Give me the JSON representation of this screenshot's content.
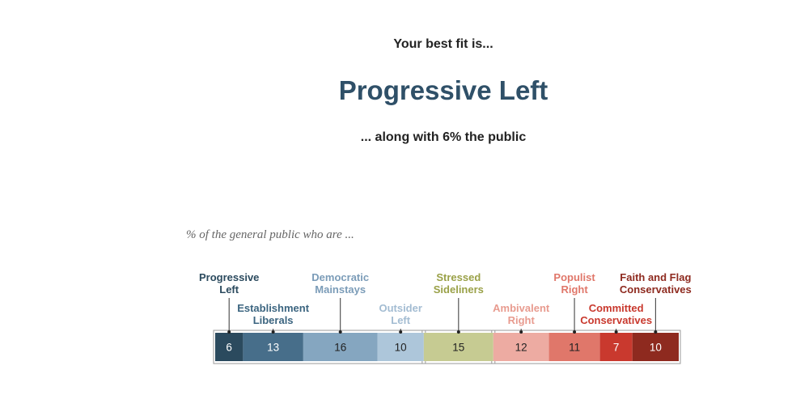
{
  "header": {
    "intro": "Your best fit is...",
    "result": "Progressive Left",
    "subtitle": "... along with 6% the public"
  },
  "chart_data": {
    "type": "bar",
    "orientation": "horizontal-stacked",
    "title": "% of the general public who are ...",
    "unit": "%",
    "groups": [
      {
        "members": [
          "Progressive Left",
          "Establishment Liberals",
          "Democratic Mainstays",
          "Outsider Left"
        ]
      },
      {
        "members": [
          "Stressed Sideliners"
        ]
      },
      {
        "members": [
          "Ambivalent Right",
          "Populist Right",
          "Committed Conservatives",
          "Faith and Flag Conservatives"
        ]
      }
    ],
    "segments": [
      {
        "label": "Progressive Left",
        "label_lines": [
          "Progressive",
          "Left"
        ],
        "value": 6,
        "color": "#2b4a5e",
        "label_color": "#2b4a5e",
        "text_color": "#ffffff"
      },
      {
        "label": "Establishment Liberals",
        "label_lines": [
          "Establishment",
          "Liberals"
        ],
        "value": 13,
        "color": "#476e8a",
        "label_color": "#3c6580",
        "text_color": "#ffffff"
      },
      {
        "label": "Democratic Mainstays",
        "label_lines": [
          "Democratic",
          "Mainstays"
        ],
        "value": 16,
        "color": "#85a6c0",
        "label_color": "#7b9cb8",
        "text_color": "#222222"
      },
      {
        "label": "Outsider Left",
        "label_lines": [
          "Outsider",
          "Left"
        ],
        "value": 10,
        "color": "#adc6da",
        "label_color": "#a3bcd2",
        "text_color": "#222222"
      },
      {
        "label": "Stressed Sideliners",
        "label_lines": [
          "Stressed",
          "Sideliners"
        ],
        "value": 15,
        "color": "#c6cb92",
        "label_color": "#9aa148",
        "text_color": "#222222"
      },
      {
        "label": "Ambivalent Right",
        "label_lines": [
          "Ambivalent",
          "Right"
        ],
        "value": 12,
        "color": "#edaba2",
        "label_color": "#e89b8f",
        "text_color": "#222222"
      },
      {
        "label": "Populist Right",
        "label_lines": [
          "Populist",
          "Right"
        ],
        "value": 11,
        "color": "#e0776a",
        "label_color": "#e0776a",
        "text_color": "#222222"
      },
      {
        "label": "Committed Conservatives",
        "label_lines": [
          "Committed",
          "Conservatives"
        ],
        "value": 7,
        "color": "#c9392e",
        "label_color": "#c9392e",
        "text_color": "#ffffff"
      },
      {
        "label": "Faith and Flag Conservatives",
        "label_lines": [
          "Faith and Flag",
          "Conservatives"
        ],
        "value": 10,
        "color": "#8e2a1f",
        "label_color": "#8e2a1f",
        "text_color": "#ffffff"
      }
    ]
  }
}
